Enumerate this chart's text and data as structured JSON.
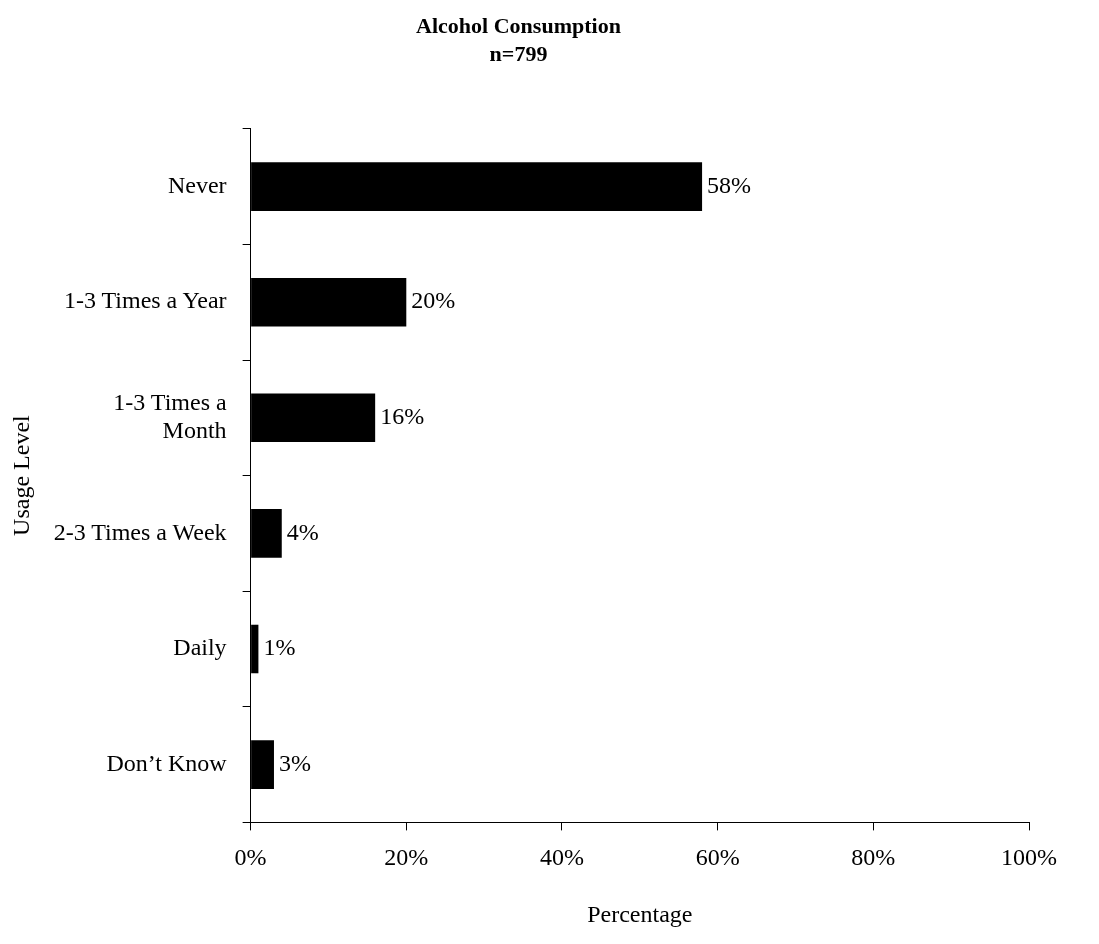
{
  "chart_data": {
    "type": "bar",
    "orientation": "horizontal",
    "title": "Alcohol Consumption",
    "subtitle": "n=799",
    "xlabel": "Percentage",
    "ylabel": "Usage Level",
    "categories": [
      "Never",
      "1-3 Times a Year",
      "1-3 Times a Month",
      "2-3 Times a Week",
      "Daily",
      "Don’t Know"
    ],
    "values": [
      58,
      20,
      16,
      4,
      1,
      3
    ],
    "value_labels": [
      "58%",
      "20%",
      "16%",
      "4%",
      "1%",
      "3%"
    ],
    "color": "#000000",
    "xlim": [
      0,
      100
    ],
    "xticks": [
      {
        "value": 0,
        "label": "0%"
      },
      {
        "value": 20,
        "label": "20%"
      },
      {
        "value": 40,
        "label": "40%"
      },
      {
        "value": 60,
        "label": "60%"
      },
      {
        "value": 80,
        "label": "80%"
      },
      {
        "value": 100,
        "label": "100%"
      }
    ],
    "grid": false,
    "legend": false
  }
}
